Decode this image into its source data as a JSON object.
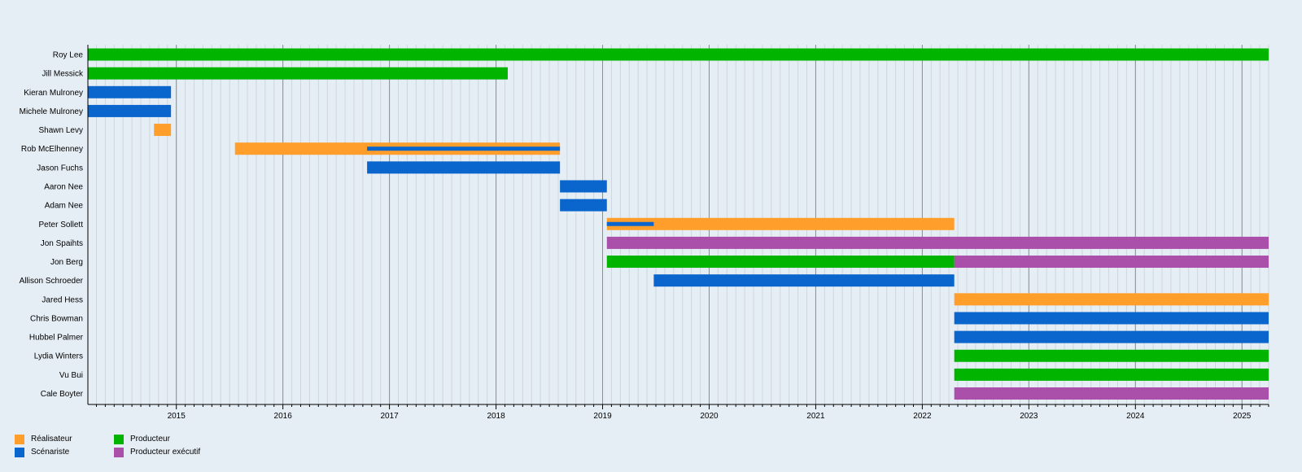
{
  "chart_data": {
    "type": "gantt",
    "title": "",
    "x_axis": {
      "min": 2014.17,
      "max": 2025.25,
      "ticks": [
        2015,
        2016,
        2017,
        2018,
        2019,
        2020,
        2021,
        2022,
        2023,
        2024,
        2025
      ]
    },
    "roles": [
      {
        "key": "director",
        "label": "Réalisateur",
        "color": "#ff9e2a"
      },
      {
        "key": "writer",
        "label": "Scénariste",
        "color": "#0a66cc"
      },
      {
        "key": "producer",
        "label": "Producteur",
        "color": "#00b400"
      },
      {
        "key": "exec",
        "label": "Producteur exécutif",
        "color": "#aa50aa"
      }
    ],
    "people": [
      {
        "name": "Roy Lee",
        "spans": [
          {
            "role": "producer",
            "start": 2014.17,
            "end": 2025.25
          }
        ]
      },
      {
        "name": "Jill Messick",
        "spans": [
          {
            "role": "producer",
            "start": 2014.17,
            "end": 2018.11
          }
        ]
      },
      {
        "name": "Kieran Mulroney",
        "spans": [
          {
            "role": "writer",
            "start": 2014.17,
            "end": 2014.95
          }
        ]
      },
      {
        "name": "Michele Mulroney",
        "spans": [
          {
            "role": "writer",
            "start": 2014.17,
            "end": 2014.95
          }
        ]
      },
      {
        "name": "Shawn Levy",
        "spans": [
          {
            "role": "director",
            "start": 2014.79,
            "end": 2014.95
          }
        ]
      },
      {
        "name": "Rob McElhenney",
        "spans": [
          {
            "role": "director",
            "start": 2015.55,
            "end": 2018.6
          },
          {
            "role": "writer",
            "start": 2016.79,
            "end": 2018.6,
            "thin": true
          }
        ]
      },
      {
        "name": "Jason Fuchs",
        "spans": [
          {
            "role": "writer",
            "start": 2016.79,
            "end": 2018.6
          }
        ]
      },
      {
        "name": "Aaron Nee",
        "spans": [
          {
            "role": "writer",
            "start": 2018.6,
            "end": 2019.04
          }
        ]
      },
      {
        "name": "Adam Nee",
        "spans": [
          {
            "role": "writer",
            "start": 2018.6,
            "end": 2019.04
          }
        ]
      },
      {
        "name": "Peter Sollett",
        "spans": [
          {
            "role": "director",
            "start": 2019.04,
            "end": 2022.3
          },
          {
            "role": "writer",
            "start": 2019.04,
            "end": 2019.48,
            "thin": true
          }
        ]
      },
      {
        "name": "Jon Spaihts",
        "spans": [
          {
            "role": "exec",
            "start": 2019.04,
            "end": 2025.25
          }
        ]
      },
      {
        "name": "Jon Berg",
        "spans": [
          {
            "role": "producer",
            "start": 2019.04,
            "end": 2022.3
          },
          {
            "role": "exec",
            "start": 2022.3,
            "end": 2025.25
          }
        ]
      },
      {
        "name": "Allison Schroeder",
        "spans": [
          {
            "role": "writer",
            "start": 2019.48,
            "end": 2022.3
          }
        ]
      },
      {
        "name": "Jared Hess",
        "spans": [
          {
            "role": "director",
            "start": 2022.3,
            "end": 2025.25
          }
        ]
      },
      {
        "name": "Chris Bowman",
        "spans": [
          {
            "role": "writer",
            "start": 2022.3,
            "end": 2025.25
          }
        ]
      },
      {
        "name": "Hubbel Palmer",
        "spans": [
          {
            "role": "writer",
            "start": 2022.3,
            "end": 2025.25
          }
        ]
      },
      {
        "name": "Lydia Winters",
        "spans": [
          {
            "role": "producer",
            "start": 2022.3,
            "end": 2025.25
          }
        ]
      },
      {
        "name": "Vu Bui",
        "spans": [
          {
            "role": "producer",
            "start": 2022.3,
            "end": 2025.25
          }
        ]
      },
      {
        "name": "Cale Boyter",
        "spans": [
          {
            "role": "exec",
            "start": 2022.3,
            "end": 2025.25
          }
        ]
      }
    ]
  }
}
